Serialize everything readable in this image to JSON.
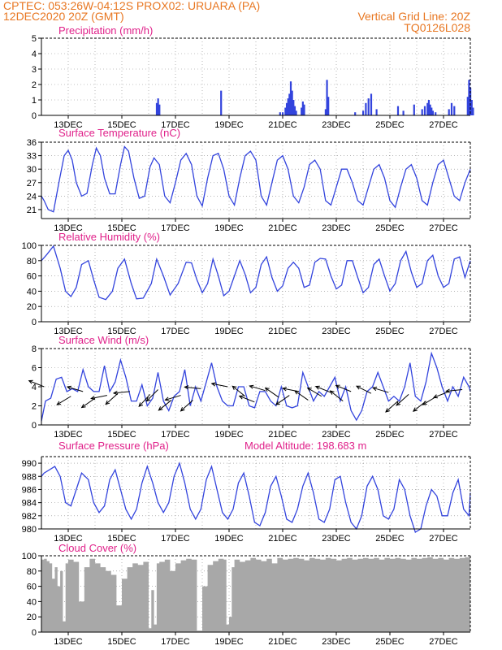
{
  "header": {
    "line1": "CPTEC:   053:26W-04:12S   PROX02: URUARA (PA)",
    "line2": "12DEC2020 20Z (GMT)",
    "grid_note": "Vertical Grid Line: 20Z",
    "code": "TQ0126L028"
  },
  "colors": {
    "header": "#e87722",
    "title": "#e0218a",
    "series": "#3344dd",
    "bars": "#3344dd",
    "cloud": "#a8a8a8",
    "arrow": "#000000",
    "grid": "#888888"
  },
  "x_tick_labels": [
    "13DEC",
    "15DEC",
    "17DEC",
    "19DEC",
    "21DEC",
    "23DEC",
    "25DEC",
    "27DEC"
  ],
  "chart_data": [
    {
      "id": "precip",
      "type": "bar",
      "title": "Precipitation (mm/h)",
      "ylim": [
        0,
        5
      ],
      "yticks": [
        "0",
        "1",
        "2",
        "3",
        "4",
        "5"
      ],
      "x_days": [
        4.3,
        4.35,
        4.4,
        6.7,
        8.9,
        9.0,
        9.1,
        9.15,
        9.2,
        9.25,
        9.3,
        9.35,
        9.4,
        9.45,
        9.5,
        9.7,
        9.75,
        9.8,
        10.6,
        10.65,
        10.7,
        11.7,
        12.0,
        12.1,
        12.2,
        12.3,
        12.5,
        13.3,
        13.5,
        13.9,
        14.2,
        14.3,
        14.4,
        14.45,
        14.5,
        14.55,
        14.6,
        14.7,
        15.2,
        15.3,
        15.4,
        15.9,
        15.95,
        16.0,
        16.05,
        16.1
      ],
      "values": [
        0.8,
        1.1,
        0.7,
        1.6,
        0.2,
        0.2,
        0.5,
        0.8,
        1.1,
        1.4,
        2.2,
        1.6,
        1.0,
        0.6,
        0.3,
        0.5,
        0.9,
        0.7,
        0.4,
        2.3,
        1.2,
        0.2,
        0.3,
        0.8,
        1.1,
        1.4,
        0.4,
        0.6,
        0.3,
        0.7,
        0.4,
        0.6,
        0.8,
        1.0,
        0.7,
        0.5,
        0.3,
        0.2,
        0.4,
        0.8,
        0.6,
        1.2,
        2.3,
        1.8,
        1.0,
        0.5
      ]
    },
    {
      "id": "temp",
      "type": "line",
      "title": "Surface Temperature (nC)",
      "ylim": [
        19,
        36
      ],
      "yticks": [
        "21",
        "24",
        "27",
        "30",
        "33",
        "36"
      ],
      "x": [
        0,
        0.1,
        0.25,
        0.45,
        0.65,
        0.85,
        1.0,
        1.15,
        1.3,
        1.5,
        1.7,
        1.9,
        2.05,
        2.2,
        2.35,
        2.55,
        2.75,
        2.95,
        3.1,
        3.25,
        3.45,
        3.65,
        3.85,
        4.05,
        4.2,
        4.4,
        4.6,
        4.8,
        5.0,
        5.2,
        5.4,
        5.6,
        5.8,
        6.0,
        6.2,
        6.4,
        6.6,
        6.8,
        7.0,
        7.2,
        7.4,
        7.6,
        7.8,
        8.0,
        8.2,
        8.4,
        8.6,
        8.8,
        9.0,
        9.2,
        9.4,
        9.6,
        9.8,
        10.0,
        10.2,
        10.4,
        10.6,
        10.8,
        11.0,
        11.2,
        11.4,
        11.6,
        11.8,
        12.0,
        12.2,
        12.4,
        12.6,
        12.8,
        13.0,
        13.2,
        13.4,
        13.6,
        13.8,
        14.0,
        14.2,
        14.4,
        14.6,
        14.8,
        15.0,
        15.2,
        15.4,
        15.6,
        15.8,
        16.0
      ],
      "values": [
        24,
        23,
        21,
        20.5,
        27,
        33,
        34.2,
        32,
        27,
        24,
        24.6,
        31,
        34.7,
        33,
        28,
        24.5,
        24.5,
        31,
        35,
        34,
        28,
        23.5,
        24,
        30.5,
        32.5,
        31,
        24,
        22.5,
        27,
        32,
        33.5,
        31,
        24,
        21.8,
        28,
        33,
        33.5,
        30,
        24,
        22,
        28,
        33,
        34,
        32,
        24,
        22,
        27,
        32,
        33,
        30,
        24,
        22.5,
        26,
        31,
        32,
        30,
        23,
        22,
        26,
        30,
        30,
        27,
        23,
        22,
        26,
        30,
        31,
        28,
        23,
        21.5,
        26,
        30,
        31,
        28,
        23,
        22,
        27,
        31,
        32,
        28,
        24,
        23,
        27,
        30
      ]
    },
    {
      "id": "rh",
      "type": "line",
      "title": "Relative Humidity (%)",
      "ylim": [
        0,
        100
      ],
      "yticks": [
        "0",
        "20",
        "40",
        "60",
        "80",
        "100"
      ],
      "x": [
        0,
        0.2,
        0.45,
        0.7,
        0.9,
        1.1,
        1.3,
        1.5,
        1.75,
        1.95,
        2.15,
        2.4,
        2.65,
        2.85,
        3.1,
        3.35,
        3.55,
        3.8,
        4.1,
        4.3,
        4.55,
        4.8,
        5.1,
        5.4,
        5.6,
        5.8,
        6.0,
        6.2,
        6.4,
        6.6,
        6.8,
        7.0,
        7.2,
        7.4,
        7.6,
        7.8,
        8.0,
        8.2,
        8.4,
        8.6,
        8.8,
        9.0,
        9.2,
        9.4,
        9.6,
        9.8,
        10.0,
        10.2,
        10.4,
        10.6,
        10.8,
        11.0,
        11.2,
        11.4,
        11.6,
        11.8,
        12.0,
        12.2,
        12.4,
        12.6,
        12.8,
        13.0,
        13.2,
        13.4,
        13.6,
        13.8,
        14.0,
        14.2,
        14.4,
        14.6,
        14.8,
        15.0,
        15.2,
        15.4,
        15.6,
        15.8,
        16.0
      ],
      "values": [
        80,
        88,
        99,
        70,
        40,
        33,
        45,
        75,
        80,
        55,
        32,
        29,
        40,
        70,
        82,
        50,
        30,
        31,
        50,
        82,
        60,
        35,
        50,
        78,
        77,
        55,
        38,
        50,
        82,
        60,
        34,
        40,
        60,
        80,
        62,
        38,
        45,
        75,
        85,
        58,
        40,
        47,
        70,
        78,
        70,
        45,
        48,
        78,
        83,
        82,
        60,
        43,
        48,
        80,
        80,
        58,
        38,
        45,
        75,
        82,
        60,
        40,
        50,
        80,
        92,
        65,
        45,
        50,
        80,
        87,
        60,
        45,
        50,
        82,
        85,
        58,
        80
      ]
    },
    {
      "id": "wind",
      "type": "line",
      "title": "Surface Wind (m/s)",
      "ylim": [
        0,
        8
      ],
      "yticks": [
        "0",
        "2",
        "4",
        "6",
        "8"
      ],
      "x": [
        0,
        0.15,
        0.35,
        0.55,
        0.75,
        0.95,
        1.15,
        1.35,
        1.55,
        1.75,
        1.95,
        2.15,
        2.35,
        2.55,
        2.75,
        2.95,
        3.15,
        3.35,
        3.55,
        3.75,
        3.95,
        4.15,
        4.35,
        4.55,
        4.75,
        4.95,
        5.15,
        5.35,
        5.55,
        5.75,
        5.95,
        6.15,
        6.35,
        6.55,
        6.75,
        6.95,
        7.15,
        7.35,
        7.55,
        7.75,
        7.95,
        8.15,
        8.35,
        8.55,
        8.75,
        8.95,
        9.15,
        9.35,
        9.55,
        9.75,
        9.95,
        10.15,
        10.35,
        10.55,
        10.75,
        10.95,
        11.15,
        11.35,
        11.55,
        11.75,
        11.95,
        12.15,
        12.35,
        12.55,
        12.75,
        12.95,
        13.15,
        13.35,
        13.55,
        13.75,
        13.95,
        14.15,
        14.35,
        14.55,
        14.75,
        14.95,
        15.15,
        15.35,
        15.55,
        15.75,
        15.95,
        16.0
      ],
      "values": [
        0.4,
        2.5,
        2.8,
        4.8,
        5,
        3.5,
        3.8,
        3.5,
        5.8,
        4,
        3.5,
        3.5,
        6.2,
        3.5,
        4.5,
        6.8,
        5,
        2.5,
        2.5,
        4.2,
        2,
        2.8,
        5.5,
        2.5,
        1.5,
        3,
        3.5,
        5.8,
        2,
        4,
        2.5,
        4.5,
        6.5,
        4,
        2.5,
        2,
        2,
        4,
        4,
        2,
        1.8,
        3.5,
        3.5,
        2.5,
        2,
        4,
        2,
        1.8,
        2,
        5.5,
        4,
        2.5,
        3.5,
        3,
        4,
        5,
        2.5,
        4,
        1.5,
        0.5,
        1.5,
        3.5,
        4,
        5.5,
        4,
        2.5,
        3,
        2.5,
        4,
        6.5,
        3,
        2.5,
        4.5,
        7.5,
        6,
        4,
        2.5,
        4,
        3,
        5,
        4,
        3.5
      ],
      "arrows": [
        {
          "day": 0.1,
          "speed": 4.0,
          "dx": -1,
          "dy": 0.4
        },
        {
          "day": 1.1,
          "speed": 3.0,
          "dx": -1,
          "dy": -0.6
        },
        {
          "day": 1.55,
          "speed": 3.5,
          "dx": -1,
          "dy": 0.3
        },
        {
          "day": 2.0,
          "speed": 2.8,
          "dx": -1,
          "dy": -0.7
        },
        {
          "day": 2.45,
          "speed": 3.1,
          "dx": -1,
          "dy": -0.2
        },
        {
          "day": 2.85,
          "speed": 3.3,
          "dx": -1,
          "dy": -0.9
        },
        {
          "day": 3.3,
          "speed": 3.5,
          "dx": -1,
          "dy": -0.1
        },
        {
          "day": 4.05,
          "speed": 3.2,
          "dx": -1,
          "dy": -1.1
        },
        {
          "day": 4.35,
          "speed": 3.7,
          "dx": -1,
          "dy": -1.0
        },
        {
          "day": 4.85,
          "speed": 2.6,
          "dx": -1,
          "dy": -0.8
        },
        {
          "day": 5.2,
          "speed": 3.1,
          "dx": -1,
          "dy": -0.3
        },
        {
          "day": 5.65,
          "speed": 2.6,
          "dx": -1,
          "dy": -0.9
        },
        {
          "day": 5.95,
          "speed": 3.8,
          "dx": -1,
          "dy": 0.1
        },
        {
          "day": 6.95,
          "speed": 4.0,
          "dx": -1,
          "dy": 0.2
        },
        {
          "day": 7.6,
          "speed": 3.0,
          "dx": -1,
          "dy": 0.8
        },
        {
          "day": 7.95,
          "speed": 2.4,
          "dx": -1,
          "dy": 0.4
        },
        {
          "day": 8.35,
          "speed": 3.6,
          "dx": -1,
          "dy": 0.3
        },
        {
          "day": 8.85,
          "speed": 2.9,
          "dx": -1,
          "dy": 0.7
        },
        {
          "day": 9.25,
          "speed": 3.1,
          "dx": -1,
          "dy": -0.7
        },
        {
          "day": 9.6,
          "speed": 3.5,
          "dx": -1,
          "dy": 0.2
        },
        {
          "day": 9.95,
          "speed": 2.6,
          "dx": -1,
          "dy": 0.7
        },
        {
          "day": 10.45,
          "speed": 3.0,
          "dx": -1,
          "dy": 0.6
        },
        {
          "day": 10.8,
          "speed": 3.4,
          "dx": -1,
          "dy": 0.4
        },
        {
          "day": 11.25,
          "speed": 2.5,
          "dx": -1,
          "dy": 0.8
        },
        {
          "day": 11.55,
          "speed": 3.5,
          "dx": -1,
          "dy": 0.4
        },
        {
          "day": 12.3,
          "speed": 3.3,
          "dx": -1,
          "dy": 0.5
        },
        {
          "day": 12.95,
          "speed": 3.4,
          "dx": -1,
          "dy": 0.3
        },
        {
          "day": 13.3,
          "speed": 2.5,
          "dx": -1,
          "dy": -0.9
        },
        {
          "day": 13.7,
          "speed": 3.2,
          "dx": -1,
          "dy": -0.9
        },
        {
          "day": 14.35,
          "speed": 2.5,
          "dx": -1,
          "dy": -0.8
        },
        {
          "day": 14.75,
          "speed": 3.0,
          "dx": -1,
          "dy": -0.6
        },
        {
          "day": 15.2,
          "speed": 3.5,
          "dx": -1,
          "dy": -0.4
        },
        {
          "day": 15.7,
          "speed": 3.7,
          "dx": -1,
          "dy": -0.1
        }
      ]
    },
    {
      "id": "pressure",
      "type": "line",
      "title": "Surface Pressure (hPa)",
      "subtitle": "Model Altitude: 198.683 m",
      "ylim": [
        980,
        991
      ],
      "yticks": [
        "980",
        "982",
        "984",
        "986",
        "988",
        "990"
      ],
      "x": [
        0,
        0.1,
        0.3,
        0.5,
        0.7,
        0.9,
        1.1,
        1.3,
        1.5,
        1.75,
        1.95,
        2.15,
        2.35,
        2.55,
        2.75,
        2.95,
        3.15,
        3.35,
        3.55,
        3.75,
        3.95,
        4.15,
        4.35,
        4.55,
        4.75,
        4.95,
        5.15,
        5.35,
        5.55,
        5.75,
        5.95,
        6.15,
        6.35,
        6.55,
        6.75,
        6.95,
        7.15,
        7.35,
        7.55,
        7.75,
        7.95,
        8.15,
        8.35,
        8.55,
        8.75,
        8.95,
        9.15,
        9.35,
        9.55,
        9.75,
        9.95,
        10.15,
        10.35,
        10.55,
        10.75,
        10.95,
        11.15,
        11.35,
        11.55,
        11.75,
        11.95,
        12.15,
        12.35,
        12.55,
        12.75,
        12.95,
        13.15,
        13.35,
        13.55,
        13.75,
        13.95,
        14.15,
        14.35,
        14.55,
        14.75,
        14.95,
        15.15,
        15.35,
        15.55,
        15.75,
        15.95,
        16.0
      ],
      "values": [
        988,
        988.5,
        989,
        989.5,
        988,
        984,
        983.5,
        986,
        988.5,
        987.5,
        984,
        982.5,
        983.5,
        987.5,
        989,
        986,
        983,
        981.5,
        983,
        987,
        989.5,
        987,
        984,
        982.5,
        984,
        988,
        990,
        987,
        983,
        981.5,
        983,
        987.5,
        989.5,
        986,
        982.5,
        981.5,
        983,
        987,
        988.5,
        985,
        981,
        980.5,
        982.5,
        986.5,
        988,
        985,
        981.5,
        981,
        983,
        986.5,
        988.5,
        985.5,
        981.5,
        981,
        983,
        987.5,
        988,
        984,
        981,
        980,
        982,
        986.5,
        988,
        986,
        982,
        981.5,
        983,
        987.5,
        986,
        982,
        979.5,
        980,
        983.5,
        986,
        985,
        982,
        982,
        985.5,
        987.5,
        983,
        982,
        985.5
      ]
    },
    {
      "id": "cloud",
      "type": "area",
      "title": "Cloud Cover (%)",
      "ylim": [
        0,
        100
      ],
      "yticks": [
        "0",
        "20",
        "40",
        "60",
        "80",
        "100"
      ],
      "x": [
        0,
        0.1,
        0.2,
        0.3,
        0.4,
        0.5,
        0.6,
        0.7,
        0.8,
        0.9,
        1.0,
        1.2,
        1.4,
        1.6,
        1.8,
        2.0,
        2.2,
        2.4,
        2.6,
        2.8,
        3.0,
        3.2,
        3.4,
        3.6,
        3.8,
        4.0,
        4.1,
        4.2,
        4.3,
        4.4,
        4.6,
        4.8,
        5.0,
        5.2,
        5.4,
        5.6,
        5.8,
        6.0,
        6.2,
        6.4,
        6.6,
        6.8,
        6.9,
        7.0,
        7.1,
        7.2,
        7.4,
        7.6,
        7.8,
        8.0,
        8.2,
        8.4,
        8.6,
        8.8,
        9.0,
        9.2,
        9.4,
        9.6,
        9.8,
        10.0,
        10.2,
        10.4,
        10.6,
        10.8,
        11.0,
        11.2,
        11.4,
        11.6,
        11.8,
        12.0,
        12.2,
        12.4,
        12.6,
        12.8,
        13.0,
        13.2,
        13.4,
        13.6,
        13.8,
        14.0,
        14.2,
        14.4,
        14.6,
        14.8,
        15.0,
        15.2,
        15.4,
        15.6,
        15.8,
        16.0
      ],
      "values": [
        95,
        96,
        93,
        90,
        70,
        85,
        60,
        80,
        14,
        90,
        95,
        92,
        40,
        85,
        96,
        90,
        85,
        80,
        75,
        35,
        70,
        85,
        90,
        88,
        92,
        5,
        55,
        10,
        90,
        92,
        95,
        80,
        90,
        94,
        96,
        95,
        2,
        60,
        88,
        93,
        96,
        95,
        10,
        20,
        85,
        95,
        92,
        94,
        97,
        95,
        93,
        96,
        90,
        97,
        95,
        96,
        97,
        96,
        94,
        97,
        96,
        95,
        97,
        96,
        94,
        96,
        97,
        95,
        96,
        97,
        96,
        97,
        95,
        97,
        96,
        97,
        96,
        95,
        97,
        96,
        97,
        98,
        96,
        97,
        95,
        97,
        96,
        97,
        98,
        97
      ]
    }
  ]
}
